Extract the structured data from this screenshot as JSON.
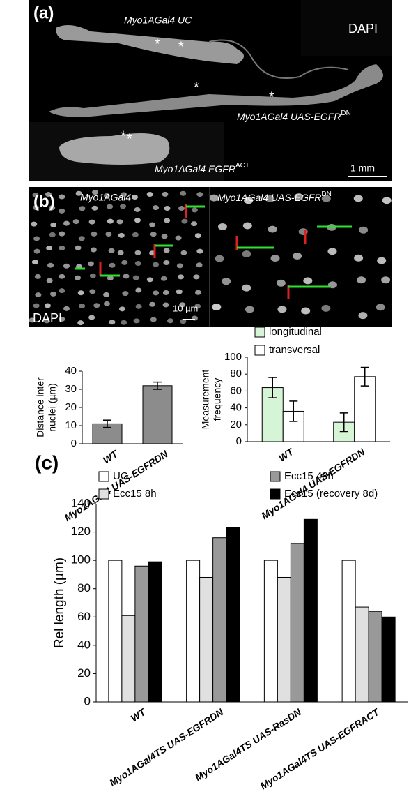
{
  "panels": {
    "a": {
      "label": "(a)",
      "stain": "DAPI",
      "scale": "1 mm",
      "gut1": "Myo1AGal4 UC",
      "gut2": {
        "text": "Myo1AGal4 UAS-EGFR",
        "sup": "DN"
      },
      "gut3": {
        "text": "Myo1AGal4 EGFR",
        "sup": "ACT"
      },
      "asterisks": [
        "*",
        "*",
        "*",
        "*",
        "*",
        "*"
      ]
    },
    "b": {
      "label": "(b)",
      "stain": "DAPI",
      "scale": "10 µm",
      "left": "Myo1AGal4",
      "right": {
        "text": "Myo1AGal4 UAS-EGFR",
        "sup": "DN"
      }
    }
  },
  "chart_data": [
    {
      "type": "bar",
      "ylabel": [
        "Distance inter",
        "nuclei (µm)"
      ],
      "categories": [
        "WT",
        "Myo1AGal4 UAS-EGFRDN"
      ],
      "values": [
        11,
        32
      ],
      "errors": [
        2,
        2
      ],
      "color": "#8c8c8c",
      "ylim": [
        0,
        40
      ],
      "yticks": [
        0,
        10,
        20,
        30,
        40
      ]
    },
    {
      "type": "grouped-bar",
      "ylabel": [
        "Measurement",
        "frequency"
      ],
      "categories": [
        "WT",
        "Myo1AGal4 UAS-EGFRDN"
      ],
      "series": [
        {
          "name": "longitudinal",
          "color": "#d6f5d6",
          "values": [
            64,
            23
          ],
          "errors": [
            12,
            11
          ]
        },
        {
          "name": "transversal",
          "color": "#ffffff",
          "values": [
            36,
            77
          ],
          "errors": [
            12,
            11
          ]
        }
      ],
      "ylim": [
        0,
        100
      ],
      "yticks": [
        0,
        20,
        40,
        60,
        80,
        100
      ]
    },
    {
      "type": "grouped-bar",
      "panel_label": "(c)",
      "ylabel": [
        "Rel length (µm)"
      ],
      "categories": [
        "WT",
        "Myo1AGal4TS UAS-EGFRDN",
        "Myo1AGal4TS UAS-RasDN",
        "Myo1AGal4TS UAS-EGFRACT"
      ],
      "series": [
        {
          "name": "UC",
          "color": "#ffffff",
          "values": [
            100,
            100,
            100,
            100
          ]
        },
        {
          "name": "Ecc15 8h",
          "color": "#e0e0e0",
          "values": [
            61,
            88,
            88,
            67
          ]
        },
        {
          "name": "Ecc15 48h",
          "color": "#999999",
          "values": [
            96,
            116,
            112,
            64
          ]
        },
        {
          "name": "Ecc15 (recovery 8d)",
          "color": "#000000",
          "values": [
            99,
            123,
            129,
            60
          ]
        }
      ],
      "ylim": [
        0,
        140
      ],
      "yticks": [
        0,
        20,
        40,
        60,
        80,
        100,
        120,
        140
      ]
    }
  ]
}
